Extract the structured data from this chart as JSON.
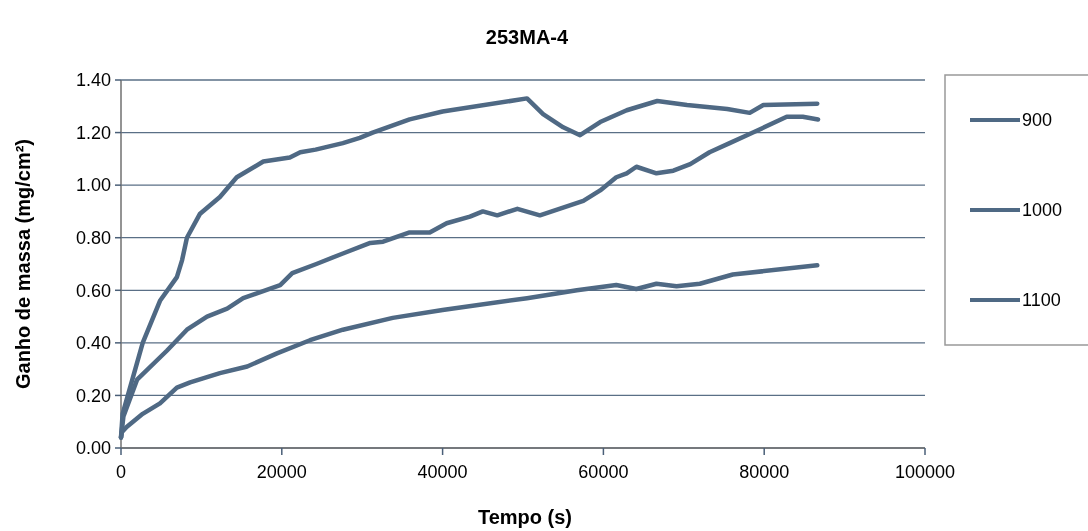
{
  "chart_data": {
    "type": "line",
    "title": "253MA-4",
    "xlabel": "Tempo (s)",
    "ylabel": "Ganho de massa (mg/cm²)",
    "xlim": [
      0,
      100000
    ],
    "xticks": [
      0,
      20000,
      40000,
      60000,
      80000,
      100000
    ],
    "ylim": [
      0,
      1.4
    ],
    "yticks": [
      {
        "value": 0,
        "label": "0.00"
      },
      {
        "value": 0.2,
        "label": "0.20"
      },
      {
        "value": 0.4,
        "label": "0.40"
      },
      {
        "value": 0.6,
        "label": "0.60"
      },
      {
        "value": 0.8,
        "label": "0.80"
      },
      {
        "value": 1,
        "label": "1.00"
      },
      {
        "value": 1.2,
        "label": "1.20"
      },
      {
        "value": 1.4,
        "label": "1.40"
      }
    ],
    "grid": "y",
    "legend": "right",
    "line_style": "solid",
    "marker": "none",
    "series": [
      {
        "name": "900",
        "color": "#4f6984",
        "x": [
          0,
          100,
          700,
          2700,
          4850,
          6950,
          8600,
          12300,
          15700,
          19400,
          23500,
          27600,
          33800,
          40000,
          50500,
          56700,
          61600,
          64100,
          66600,
          69100,
          72000,
          76100,
          86600
        ],
        "values": [
          0.04,
          0.06,
          0.08,
          0.13,
          0.17,
          0.23,
          0.25,
          0.285,
          0.31,
          0.36,
          0.41,
          0.45,
          0.495,
          0.525,
          0.57,
          0.6,
          0.62,
          0.605,
          0.625,
          0.615,
          0.625,
          0.66,
          0.695
        ]
      },
      {
        "name": "1000",
        "color": "#4f6984",
        "x": [
          0,
          300,
          2000,
          5700,
          8200,
          10700,
          13200,
          15200,
          19800,
          21300,
          24300,
          27600,
          31000,
          32600,
          35900,
          38400,
          40500,
          43400,
          45000,
          46800,
          49300,
          52100,
          57500,
          59600,
          61600,
          62900,
          64100,
          66600,
          68700,
          70800,
          73200,
          75700,
          78600,
          82800,
          84800,
          86700
        ],
        "values": [
          0.04,
          0.12,
          0.26,
          0.37,
          0.45,
          0.5,
          0.53,
          0.57,
          0.62,
          0.665,
          0.7,
          0.74,
          0.78,
          0.785,
          0.82,
          0.82,
          0.855,
          0.88,
          0.9,
          0.885,
          0.91,
          0.885,
          0.94,
          0.98,
          1.03,
          1.045,
          1.07,
          1.045,
          1.055,
          1.08,
          1.125,
          1.16,
          1.2,
          1.26,
          1.26,
          1.25
        ]
      },
      {
        "name": "1100",
        "color": "#4f6984",
        "x": [
          0,
          200,
          2700,
          4850,
          6950,
          7600,
          8200,
          9800,
          12300,
          14400,
          17700,
          21000,
          22300,
          24200,
          27600,
          29700,
          31300,
          35900,
          40000,
          50500,
          52500,
          55000,
          57100,
          59600,
          62900,
          66700,
          70400,
          75400,
          78200,
          79900,
          86600
        ],
        "values": [
          0.04,
          0.13,
          0.4,
          0.56,
          0.65,
          0.715,
          0.8,
          0.89,
          0.955,
          1.03,
          1.09,
          1.105,
          1.125,
          1.135,
          1.16,
          1.18,
          1.2,
          1.25,
          1.28,
          1.33,
          1.27,
          1.22,
          1.19,
          1.24,
          1.285,
          1.32,
          1.305,
          1.29,
          1.275,
          1.305,
          1.31
        ]
      }
    ]
  }
}
